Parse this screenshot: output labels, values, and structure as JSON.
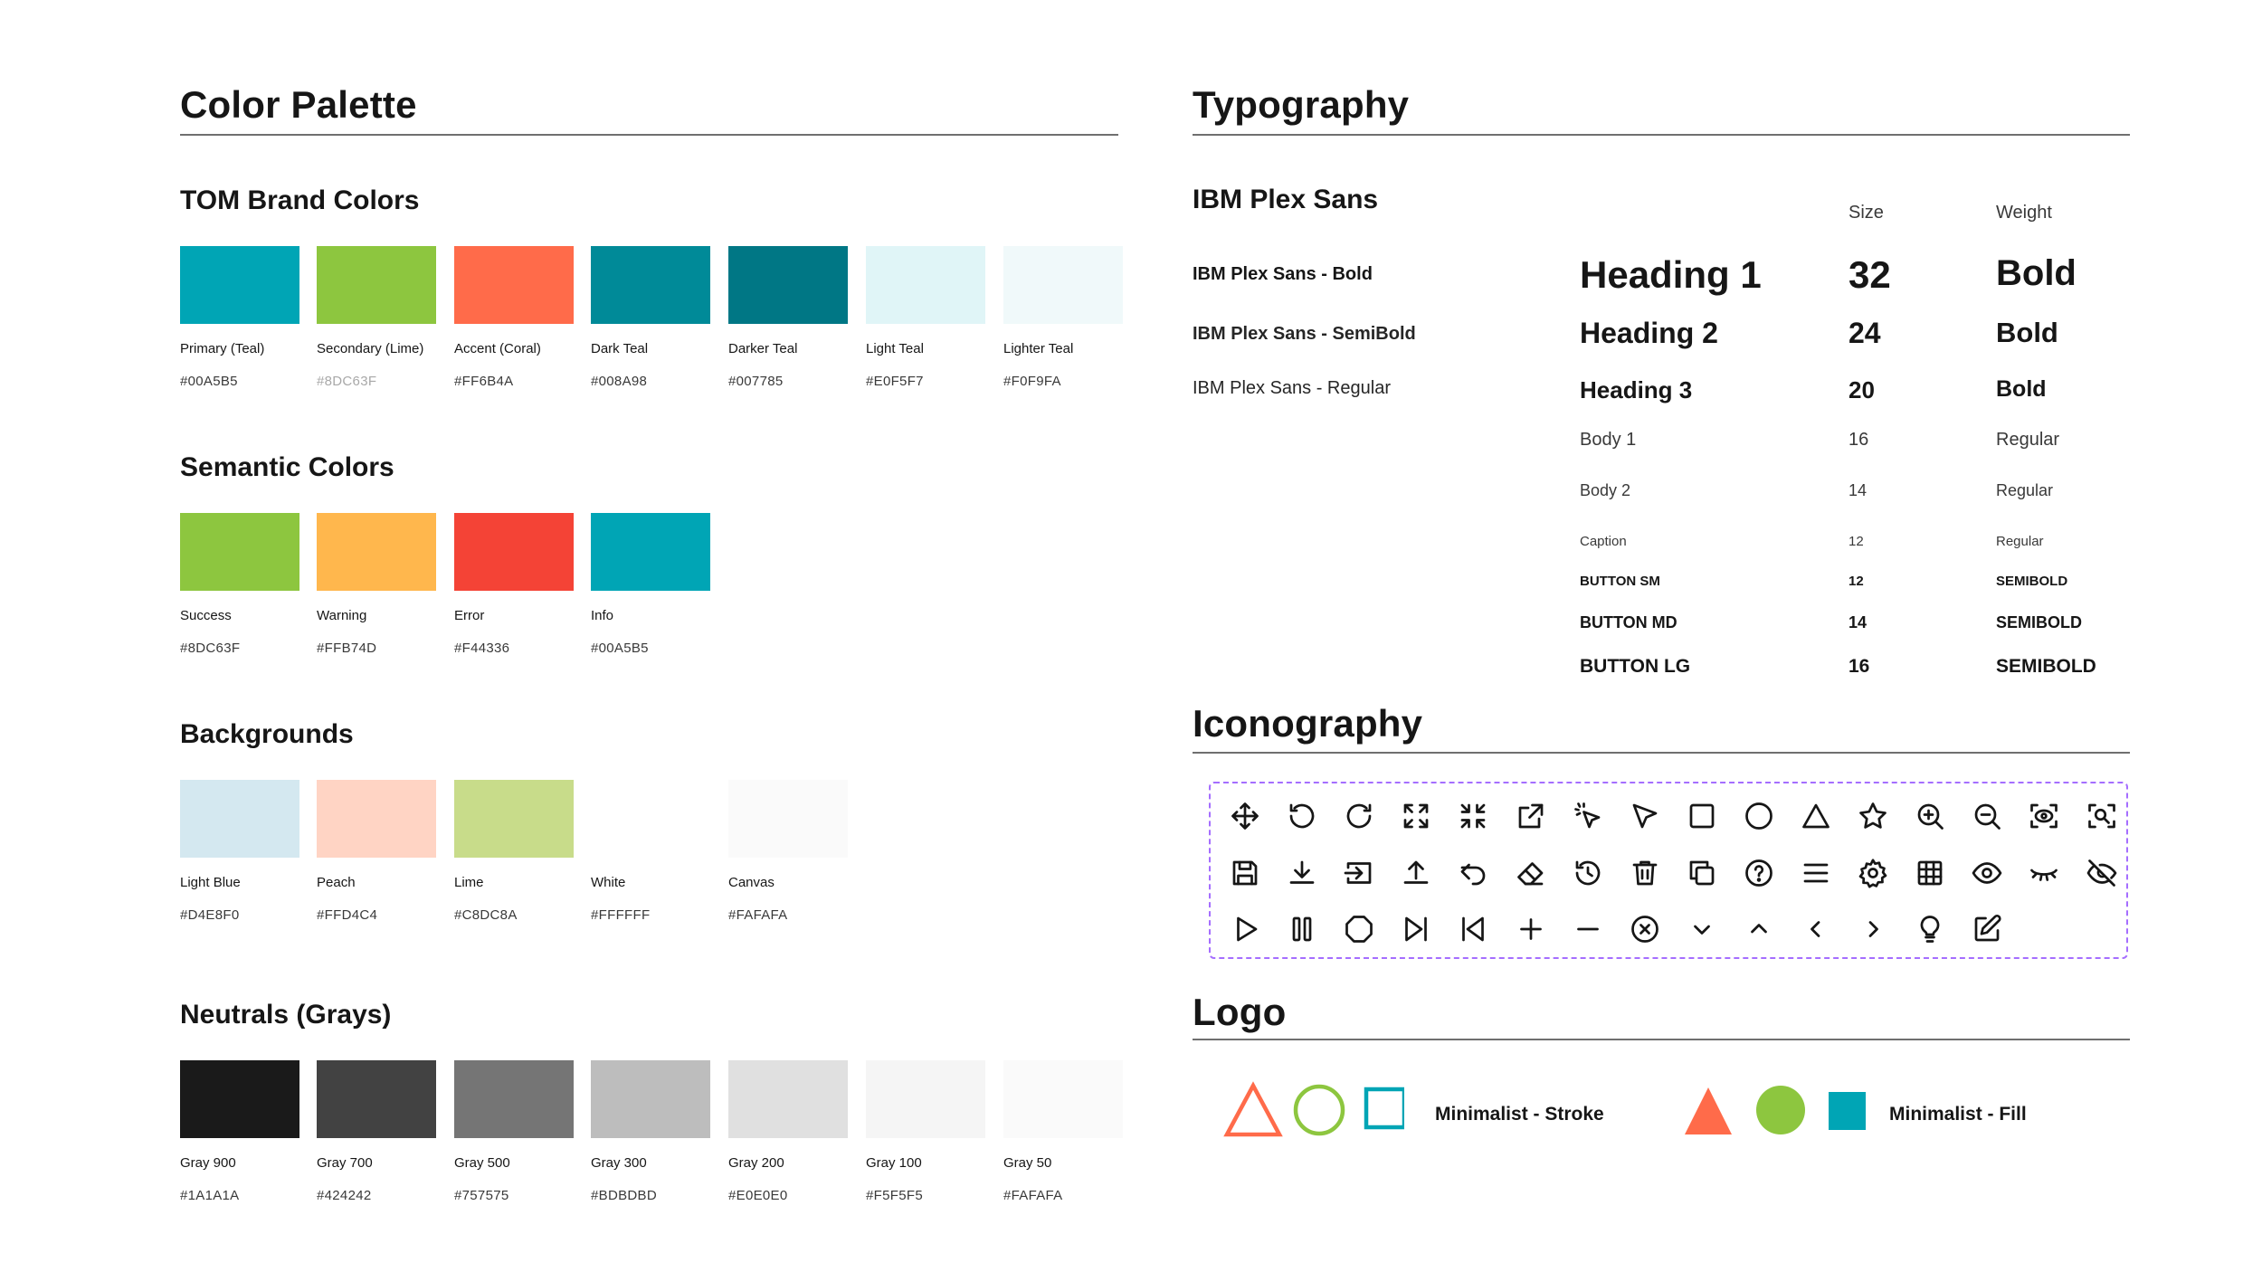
{
  "colorPalette": {
    "title": "Color Palette",
    "groups": [
      {
        "title": "TOM Brand Colors",
        "swatches": [
          {
            "name": "Primary (Teal)",
            "hex": "#00A5B5",
            "color": "#00A5B5"
          },
          {
            "name": "Secondary (Lime)",
            "hex": "#8DC63F",
            "color": "#8DC63F"
          },
          {
            "name": "Accent (Coral)",
            "hex": "#FF6B4A",
            "color": "#FF6B4A"
          },
          {
            "name": "Dark Teal",
            "hex": "#008A98",
            "color": "#008A98"
          },
          {
            "name": "Darker Teal",
            "hex": "#007785",
            "color": "#007785"
          },
          {
            "name": "Light Teal",
            "hex": "#E0F5F7",
            "color": "#E0F5F7"
          },
          {
            "name": "Lighter Teal",
            "hex": "#F0F9FA",
            "color": "#F0F9FA"
          }
        ]
      },
      {
        "title": "Semantic Colors",
        "swatches": [
          {
            "name": "Success",
            "hex": "#8DC63F",
            "color": "#8DC63F"
          },
          {
            "name": "Warning",
            "hex": "#FFB74D",
            "color": "#FFB74D"
          },
          {
            "name": "Error",
            "hex": "#F44336",
            "color": "#F44336"
          },
          {
            "name": "Info",
            "hex": "#00A5B5",
            "color": "#00A5B5"
          }
        ]
      },
      {
        "title": "Backgrounds",
        "swatches": [
          {
            "name": "Light Blue",
            "hex": "#D4E8F0",
            "color": "#D4E8F0"
          },
          {
            "name": "Peach",
            "hex": "#FFD4C4",
            "color": "#FFD4C4"
          },
          {
            "name": "Lime",
            "hex": "#C8DC8A",
            "color": "#C8DC8A"
          },
          {
            "name": "White",
            "hex": "#FFFFFF",
            "color": "#FFFFFF"
          },
          {
            "name": "Canvas",
            "hex": "#FAFAFA",
            "color": "#FAFAFA"
          }
        ]
      },
      {
        "title": "Neutrals (Grays)",
        "swatches": [
          {
            "name": "Gray 900",
            "hex": "#1A1A1A",
            "color": "#1A1A1A"
          },
          {
            "name": "Gray 700",
            "hex": "#424242",
            "color": "#424242"
          },
          {
            "name": "Gray 500",
            "hex": "#757575",
            "color": "#757575"
          },
          {
            "name": "Gray 300",
            "hex": "#BDBDBD",
            "color": "#BDBDBD"
          },
          {
            "name": "Gray 200",
            "hex": "#E0E0E0",
            "color": "#E0E0E0"
          },
          {
            "name": "Gray 100",
            "hex": "#F5F5F5",
            "color": "#F5F5F5"
          },
          {
            "name": "Gray 50",
            "hex": "#FAFAFA",
            "color": "#FAFAFA"
          }
        ]
      }
    ]
  },
  "typography": {
    "title": "Typography",
    "fontFamily": "IBM Plex Sans",
    "sizeHeader": "Size",
    "weightHeader": "Weight",
    "variants": [
      "IBM Plex Sans - Bold",
      "IBM Plex Sans - SemiBold",
      "IBM Plex Sans - Regular"
    ],
    "styles": [
      {
        "label": "Heading 1",
        "size": "32",
        "weight": "Bold"
      },
      {
        "label": "Heading 2",
        "size": "24",
        "weight": "Bold"
      },
      {
        "label": "Heading 3",
        "size": "20",
        "weight": "Bold"
      },
      {
        "label": "Body 1",
        "size": "16",
        "weight": "Regular"
      },
      {
        "label": "Body 2",
        "size": "14",
        "weight": "Regular"
      },
      {
        "label": "Caption",
        "size": "12",
        "weight": "Regular"
      },
      {
        "label": "BUTTON SM",
        "size": "12",
        "weight": "SEMIBOLD"
      },
      {
        "label": "BUTTON MD",
        "size": "14",
        "weight": "SEMIBOLD"
      },
      {
        "label": "BUTTON LG",
        "size": "16",
        "weight": "SEMIBOLD"
      }
    ]
  },
  "iconography": {
    "title": "Iconography",
    "rows": [
      [
        "move-icon",
        "rotate-ccw-icon",
        "rotate-cw-icon",
        "maximize-icon",
        "minimize-icon",
        "external-link-icon",
        "magic-pointer-icon",
        "pointer-icon",
        "square-icon",
        "circle-icon",
        "triangle-icon",
        "star-icon",
        "zoom-in-icon",
        "zoom-out-icon",
        "focus-view-icon",
        "scan-zoom-icon"
      ],
      [
        "save-icon",
        "download-icon",
        "import-icon",
        "upload-icon",
        "undo-icon",
        "eraser-icon",
        "history-icon",
        "trash-icon",
        "copy-icon",
        "help-icon",
        "menu-icon",
        "settings-icon",
        "grid-icon",
        "eye-icon",
        "eye-closed-icon",
        "eye-off-icon"
      ],
      [
        "play-icon",
        "pause-icon",
        "octagon-icon",
        "skip-forward-icon",
        "skip-back-icon",
        "plus-icon",
        "minus-icon",
        "close-circle-icon",
        "chevron-down-icon",
        "chevron-up-icon",
        "chevron-left-icon",
        "chevron-right-icon",
        "lightbulb-icon",
        "edit-icon"
      ]
    ]
  },
  "logo": {
    "title": "Logo",
    "strokeLabel": "Minimalist - Stroke",
    "fillLabel": "Minimalist - Fill",
    "colors": {
      "coral": "#FF6B4A",
      "lime": "#8DC63F",
      "teal": "#00A5B5"
    }
  }
}
